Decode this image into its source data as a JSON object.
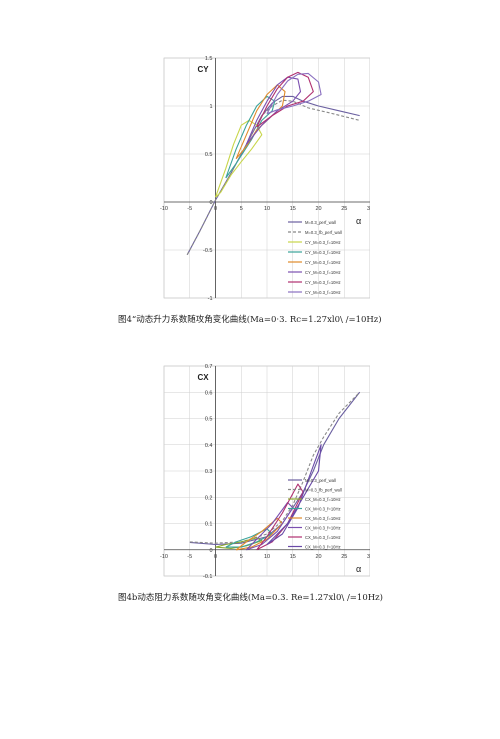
{
  "figure1": {
    "caption": "图4“动态升力系数随攻角变化曲线(Ma=0·3. Rc=1.27xl0\\ /=10Hz)",
    "chart_data": {
      "type": "line",
      "ylabel": "CY",
      "xlabel": "α",
      "xlim": [
        -10,
        30
      ],
      "ylim": [
        -1,
        1.5
      ],
      "grid": true,
      "legend_position": "bottom-right",
      "x_ticks": [
        "-10",
        "-5",
        "0",
        "5",
        "10",
        "15",
        "20",
        "25",
        "30"
      ],
      "y_ticks": [
        "1.5",
        "1",
        "0.5",
        "0",
        "-0.5",
        "-1"
      ],
      "series": [
        {
          "name": "M=0.3_perf_wall",
          "color": "#6a5fa0",
          "dash": false,
          "points": [
            [
              -5.5,
              -0.55
            ],
            [
              -3,
              -0.3
            ],
            [
              0,
              0.02
            ],
            [
              3,
              0.3
            ],
            [
              6,
              0.6
            ],
            [
              9,
              0.9
            ],
            [
              11,
              1.03
            ],
            [
              13,
              1.1
            ],
            [
              15,
              1.1
            ],
            [
              17,
              1.05
            ],
            [
              20,
              1.0
            ],
            [
              24,
              0.95
            ],
            [
              28,
              0.9
            ]
          ]
        },
        {
          "name": "M=0.3_fb_perf_wall",
          "color": "#888888",
          "dash": true,
          "points": [
            [
              -5.5,
              -0.55
            ],
            [
              -3,
              -0.3
            ],
            [
              0,
              0.02
            ],
            [
              3,
              0.3
            ],
            [
              6,
              0.6
            ],
            [
              9,
              0.9
            ],
            [
              11,
              1.0
            ],
            [
              13,
              1.06
            ],
            [
              15,
              1.05
            ],
            [
              18,
              0.98
            ],
            [
              22,
              0.93
            ],
            [
              28,
              0.85
            ]
          ]
        },
        {
          "name": "CY_M=0.3_f=10Hz",
          "color": "#c8d64a",
          "dash": false,
          "points": [
            [
              0,
              0.05
            ],
            [
              2,
              0.35
            ],
            [
              3.5,
              0.6
            ],
            [
              5,
              0.8
            ],
            [
              6.5,
              0.85
            ],
            [
              8,
              0.8
            ],
            [
              9,
              0.7
            ],
            [
              7,
              0.55
            ],
            [
              5,
              0.42
            ],
            [
              3,
              0.28
            ],
            [
              1,
              0.1
            ],
            [
              0,
              0.05
            ]
          ]
        },
        {
          "name": "CY_M=0.3_f=10Hz",
          "color": "#3aa39a",
          "dash": false,
          "points": [
            [
              2,
              0.25
            ],
            [
              4,
              0.55
            ],
            [
              6,
              0.8
            ],
            [
              8,
              1.0
            ],
            [
              10,
              1.1
            ],
            [
              11.5,
              1.05
            ],
            [
              11,
              0.95
            ],
            [
              9,
              0.85
            ],
            [
              7,
              0.65
            ],
            [
              4,
              0.4
            ],
            [
              2,
              0.25
            ]
          ]
        },
        {
          "name": "CY_M=0.3_f=10Hz",
          "color": "#e08a2a",
          "dash": false,
          "points": [
            [
              4,
              0.45
            ],
            [
              6,
              0.7
            ],
            [
              8,
              0.95
            ],
            [
              10,
              1.12
            ],
            [
              12,
              1.22
            ],
            [
              13.5,
              1.15
            ],
            [
              13,
              1.0
            ],
            [
              11,
              0.9
            ],
            [
              8,
              0.75
            ],
            [
              6,
              0.58
            ],
            [
              4,
              0.45
            ]
          ]
        },
        {
          "name": "CY_M=0.3_f=10Hz",
          "color": "#7b4fb0",
          "dash": false,
          "points": [
            [
              6,
              0.6
            ],
            [
              8,
              0.85
            ],
            [
              10,
              1.05
            ],
            [
              12,
              1.22
            ],
            [
              14,
              1.3
            ],
            [
              16,
              1.28
            ],
            [
              16.5,
              1.15
            ],
            [
              15,
              1.05
            ],
            [
              12,
              0.95
            ],
            [
              9,
              0.8
            ],
            [
              6,
              0.6
            ]
          ]
        },
        {
          "name": "CY_M=0.3_f=10Hz",
          "color": "#b03070",
          "dash": false,
          "points": [
            [
              8,
              0.78
            ],
            [
              10,
              1.0
            ],
            [
              12,
              1.18
            ],
            [
              14,
              1.3
            ],
            [
              16,
              1.35
            ],
            [
              18,
              1.3
            ],
            [
              19,
              1.15
            ],
            [
              17,
              1.05
            ],
            [
              14,
              1.0
            ],
            [
              11,
              0.9
            ],
            [
              8,
              0.78
            ]
          ]
        },
        {
          "name": "CY_M=0.3_f=10Hz",
          "color": "#8a70c0",
          "dash": false,
          "points": [
            [
              10,
              0.92
            ],
            [
              12,
              1.12
            ],
            [
              14,
              1.26
            ],
            [
              16,
              1.33
            ],
            [
              18,
              1.34
            ],
            [
              20,
              1.25
            ],
            [
              20.5,
              1.12
            ],
            [
              18,
              1.05
            ],
            [
              15,
              1.0
            ],
            [
              12,
              0.96
            ],
            [
              10,
              0.92
            ]
          ]
        }
      ]
    }
  },
  "figure2": {
    "caption": "图4b动态阻力系数随攻角变化曲线(Ma=0.3. Re=1.27xl0\\ /=10Hz)",
    "chart_data": {
      "type": "line",
      "ylabel": "CX",
      "xlabel": "α",
      "xlim": [
        -10,
        30
      ],
      "ylim": [
        -0.1,
        0.7
      ],
      "grid": true,
      "legend_position": "bottom-right",
      "x_ticks": [
        "-10",
        "-5",
        "0",
        "5",
        "10",
        "15",
        "20",
        "25",
        "30"
      ],
      "y_ticks": [
        "0.7",
        "0.6",
        "0.5",
        "0.4",
        "0.3",
        "0.2",
        "0.1",
        "0",
        "-0.1"
      ],
      "series": [
        {
          "name": "M=0.3_perf_wall",
          "color": "#6a5fa0",
          "dash": false,
          "points": [
            [
              -5,
              0.028
            ],
            [
              0,
              0.02
            ],
            [
              5,
              0.025
            ],
            [
              10,
              0.05
            ],
            [
              13,
              0.1
            ],
            [
              15,
              0.16
            ],
            [
              17,
              0.22
            ],
            [
              19,
              0.3
            ],
            [
              21,
              0.4
            ],
            [
              24,
              0.5
            ],
            [
              28,
              0.6
            ]
          ]
        },
        {
          "name": "M=0.3_fb_perf_wall",
          "color": "#888888",
          "dash": true,
          "points": [
            [
              -5,
              0.03
            ],
            [
              0,
              0.025
            ],
            [
              5,
              0.03
            ],
            [
              10,
              0.06
            ],
            [
              13,
              0.11
            ],
            [
              15,
              0.17
            ],
            [
              17,
              0.26
            ],
            [
              19,
              0.36
            ],
            [
              21,
              0.43
            ],
            [
              24,
              0.52
            ],
            [
              28,
              0.6
            ]
          ]
        },
        {
          "name": "CX_M=0.3_f=10Hz",
          "color": "#8aa830",
          "dash": false,
          "points": [
            [
              0,
              0.01
            ],
            [
              3,
              0.005
            ],
            [
              6,
              0.015
            ],
            [
              9,
              0.035
            ],
            [
              8,
              0.045
            ],
            [
              5,
              0.03
            ],
            [
              2,
              0.02
            ],
            [
              0,
              0.01
            ]
          ]
        },
        {
          "name": "CX_M=0.3_f=10Hz",
          "color": "#3aa39a",
          "dash": false,
          "points": [
            [
              2,
              0.01
            ],
            [
              5,
              0.01
            ],
            [
              8,
              0.03
            ],
            [
              11,
              0.06
            ],
            [
              10,
              0.08
            ],
            [
              7,
              0.05
            ],
            [
              4,
              0.03
            ],
            [
              2,
              0.01
            ]
          ]
        },
        {
          "name": "CX_M=0.3_f=10Hz",
          "color": "#e08a2a",
          "dash": false,
          "points": [
            [
              4,
              0.0
            ],
            [
              7,
              0.01
            ],
            [
              10,
              0.04
            ],
            [
              13,
              0.1
            ],
            [
              12,
              0.12
            ],
            [
              9,
              0.07
            ],
            [
              6,
              0.03
            ],
            [
              4,
              0.0
            ]
          ]
        },
        {
          "name": "CX_M=0.3_f=10Hz",
          "color": "#7b4fb0",
          "dash": false,
          "points": [
            [
              6,
              0.0
            ],
            [
              9,
              0.02
            ],
            [
              12,
              0.07
            ],
            [
              15,
              0.16
            ],
            [
              14,
              0.18
            ],
            [
              11,
              0.1
            ],
            [
              8,
              0.04
            ],
            [
              6,
              0.0
            ]
          ]
        },
        {
          "name": "CX_M=0.3_f=10Hz",
          "color": "#b03070",
          "dash": false,
          "points": [
            [
              8,
              0.0
            ],
            [
              11,
              0.03
            ],
            [
              14,
              0.1
            ],
            [
              17,
              0.22
            ],
            [
              16,
              0.25
            ],
            [
              13,
              0.14
            ],
            [
              10,
              0.05
            ],
            [
              8,
              0.0
            ]
          ]
        },
        {
          "name": "CX_M=0.3_f=10Hz",
          "color": "#6a4aa8",
          "dash": false,
          "points": [
            [
              10,
              0.02
            ],
            [
              13,
              0.06
            ],
            [
              16,
              0.16
            ],
            [
              19,
              0.32
            ],
            [
              20.5,
              0.4
            ],
            [
              20,
              0.3
            ],
            [
              17,
              0.2
            ],
            [
              14,
              0.1
            ],
            [
              11,
              0.04
            ],
            [
              10,
              0.02
            ]
          ]
        }
      ]
    }
  }
}
